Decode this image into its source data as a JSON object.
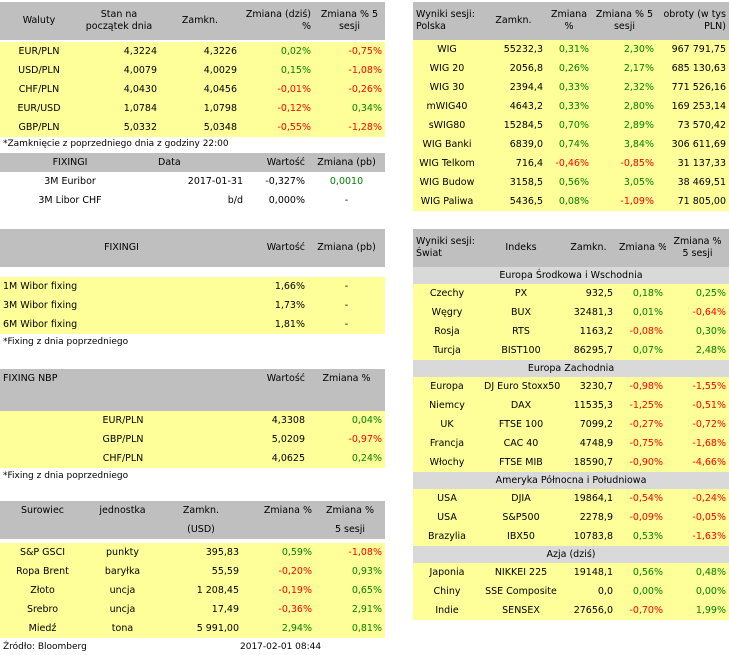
{
  "waluty": {
    "headers": [
      "Waluty",
      "Stan na początek dnia",
      "Zamkn.",
      "Zmiana (dziś) %",
      "Zmiana % 5 sesji"
    ],
    "rows": [
      {
        "name": "EUR/PLN",
        "start": "4,3224",
        "close": "4,3226",
        "chg": "0,02%",
        "chg5": "-0,75%"
      },
      {
        "name": "USD/PLN",
        "start": "4,0079",
        "close": "4,0029",
        "chg": "0,15%",
        "chg5": "-1,08%"
      },
      {
        "name": "CHF/PLN",
        "start": "4,0430",
        "close": "4,0456",
        "chg": "-0,01%",
        "chg5": "-0,26%"
      },
      {
        "name": "EUR/USD",
        "start": "1,0784",
        "close": "1,0798",
        "chg": "-0,12%",
        "chg5": "0,34%"
      },
      {
        "name": "GBP/PLN",
        "start": "5,0332",
        "close": "5,0348",
        "chg": "-0,55%",
        "chg5": "-1,28%"
      }
    ],
    "note": "*Zamknięcie z poprzedniego dnia z godziny 22:00"
  },
  "fixing1": {
    "headers": [
      "FIXINGI",
      "Data",
      "Wartość",
      "Zmiana (pb)"
    ],
    "rows": [
      {
        "name": "3M Euribor",
        "date": "2017-01-31",
        "value": "-0,327%",
        "chg": "0,0010"
      },
      {
        "name": "3M Libor CHF",
        "date": "b/d",
        "value": "0,000%",
        "chg": "-"
      }
    ]
  },
  "fixing2": {
    "headers": [
      "FIXINGI",
      "Wartość",
      "Zmiana (pb)"
    ],
    "rows": [
      {
        "name": "1M Wibor fixing",
        "value": "1,66%",
        "chg": "-"
      },
      {
        "name": "3M Wibor fixing",
        "value": "1,73%",
        "chg": "-"
      },
      {
        "name": "6M Wibor fixing",
        "value": "1,81%",
        "chg": "-"
      }
    ],
    "note": "*Fixing z dnia poprzedniego"
  },
  "fixing_nbp": {
    "headers": [
      "FIXING NBP",
      "Wartość",
      "Zmiana %"
    ],
    "rows": [
      {
        "name": "EUR/PLN",
        "value": "4,3308",
        "chg": "0,04%"
      },
      {
        "name": "GBP/PLN",
        "value": "5,0209",
        "chg": "-0,97%"
      },
      {
        "name": "CHF/PLN",
        "value": "4,0625",
        "chg": "0,24%"
      }
    ],
    "note": "*Fixing z dnia poprzedniego"
  },
  "surowce": {
    "headers": [
      "Surowiec",
      "jednostka",
      "Zamkn.",
      "Zmiana %",
      "Zmiana %"
    ],
    "headers2": [
      "(USD)",
      "5 sesji"
    ],
    "rows": [
      {
        "name": "S&P GSCI",
        "unit": "punkty",
        "close": "395,83",
        "chg": "0,59%",
        "chg5": "-1,08%"
      },
      {
        "name": "Ropa Brent",
        "unit": "baryłka",
        "close": "55,59",
        "chg": "-0,20%",
        "chg5": "0,93%"
      },
      {
        "name": "Złoto",
        "unit": "uncja",
        "close": "1 208,45",
        "chg": "-0,19%",
        "chg5": "0,65%"
      },
      {
        "name": "Srebro",
        "unit": "uncja",
        "close": "17,49",
        "chg": "-0,36%",
        "chg5": "2,91%"
      },
      {
        "name": "Miedź",
        "unit": "tona",
        "close": "5 991,00",
        "chg": "2,94%",
        "chg5": "0,81%"
      }
    ]
  },
  "footer": {
    "source": "Źródło: Bloomberg",
    "date": "2017-02-01 08:44"
  },
  "polska": {
    "headers": [
      "Wyniki sesji: Polska",
      "Zamkn.",
      "Zmiana %",
      "Zmiana % 5 sesji",
      "obroty (w tys PLN)"
    ],
    "rows": [
      {
        "name": "WIG",
        "close": "55232,3",
        "chg": "0,31%",
        "chg5": "2,30%",
        "turnover": "967 791,75"
      },
      {
        "name": "WIG 20",
        "close": "2056,8",
        "chg": "0,26%",
        "chg5": "2,17%",
        "turnover": "685 130,63"
      },
      {
        "name": "WIG 30",
        "close": "2394,4",
        "chg": "0,33%",
        "chg5": "2,32%",
        "turnover": "771 526,16"
      },
      {
        "name": "mWIG40",
        "close": "4643,2",
        "chg": "0,33%",
        "chg5": "2,80%",
        "turnover": "169 253,14"
      },
      {
        "name": "sWIG80",
        "close": "15284,5",
        "chg": "0,70%",
        "chg5": "2,89%",
        "turnover": "73 570,42"
      },
      {
        "name": "WIG Banki",
        "close": "6839,0",
        "chg": "0,74%",
        "chg5": "3,84%",
        "turnover": "306 611,69"
      },
      {
        "name": "WIG Telkom",
        "close": "716,4",
        "chg": "-0,46%",
        "chg5": "-0,85%",
        "turnover": "31 137,33"
      },
      {
        "name": "WIG Budow",
        "close": "3158,5",
        "chg": "0,56%",
        "chg5": "3,05%",
        "turnover": "38 469,51"
      },
      {
        "name": "WIG Paliwa",
        "close": "5436,5",
        "chg": "0,08%",
        "chg5": "-1,09%",
        "turnover": "71 805,00"
      }
    ]
  },
  "swiat": {
    "headers": [
      "Wyniki sesji: Świat",
      "Indeks",
      "Zamkn.",
      "Zmiana %",
      "Zmiana % 5 sesji"
    ],
    "sections": [
      {
        "title": "Europa Środkowa i Wschodnia",
        "rows": [
          {
            "country": "Czechy",
            "index": "PX",
            "close": "932,5",
            "chg": "0,18%",
            "chg5": "0,25%"
          },
          {
            "country": "Węgry",
            "index": "BUX",
            "close": "32481,3",
            "chg": "0,01%",
            "chg5": "-0,64%"
          },
          {
            "country": "Rosja",
            "index": "RTS",
            "close": "1163,2",
            "chg": "-0,08%",
            "chg5": "0,30%"
          },
          {
            "country": "Turcja",
            "index": "BIST100",
            "close": "86295,7",
            "chg": "0,07%",
            "chg5": "2,48%"
          }
        ]
      },
      {
        "title": "Europa Zachodnia",
        "rows": [
          {
            "country": "Europa",
            "index": "DJ Euro Stoxx50",
            "close": "3230,7",
            "chg": "-0,98%",
            "chg5": "-1,55%"
          },
          {
            "country": "Niemcy",
            "index": "DAX",
            "close": "11535,3",
            "chg": "-1,25%",
            "chg5": "-0,51%"
          },
          {
            "country": "UK",
            "index": "FTSE 100",
            "close": "7099,2",
            "chg": "-0,27%",
            "chg5": "-0,72%"
          },
          {
            "country": "Francja",
            "index": "CAC 40",
            "close": "4748,9",
            "chg": "-0,75%",
            "chg5": "-1,68%"
          },
          {
            "country": "Włochy",
            "index": "FTSE MIB",
            "close": "18590,7",
            "chg": "-0,90%",
            "chg5": "-4,66%"
          }
        ]
      },
      {
        "title": "Ameryka Północna i Południowa",
        "rows": [
          {
            "country": "USA",
            "index": "DJIA",
            "close": "19864,1",
            "chg": "-0,54%",
            "chg5": "-0,24%"
          },
          {
            "country": "USA",
            "index": "S&P500",
            "close": "2278,9",
            "chg": "-0,09%",
            "chg5": "-0,05%"
          },
          {
            "country": "Brazylia",
            "index": "IBX50",
            "close": "10783,8",
            "chg": "0,53%",
            "chg5": "-1,63%"
          }
        ]
      },
      {
        "title": "Azja (dziś)",
        "rows": [
          {
            "country": "Japonia",
            "index": "NIKKEI 225",
            "close": "19148,1",
            "chg": "0,56%",
            "chg5": "0,48%"
          },
          {
            "country": "Chiny",
            "index": "SSE Composite",
            "close": "0,0",
            "chg": "0,00%",
            "chg5": "0,00%"
          },
          {
            "country": "Indie",
            "index": "SENSEX",
            "close": "27656,0",
            "chg": "-0,70%",
            "chg5": "1,99%"
          }
        ]
      }
    ]
  },
  "colors": {
    "positive": "#008000",
    "negative": "#ff0000",
    "header": "#bfbfbf",
    "row": "#ffff99"
  }
}
